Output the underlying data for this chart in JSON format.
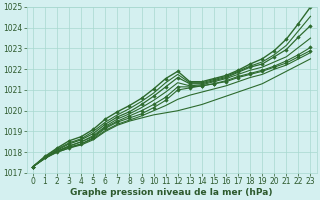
{
  "bg_color": "#d4f0f0",
  "grid_color": "#a8d8d0",
  "line_color": "#2d6a2d",
  "marker_color": "#2d6a2d",
  "xlabel": "Graphe pression niveau de la mer (hPa)",
  "xlim_min": -0.5,
  "xlim_max": 23.5,
  "ylim": [
    1017,
    1025
  ],
  "yticks": [
    1017,
    1018,
    1019,
    1020,
    1021,
    1022,
    1023,
    1024,
    1025
  ],
  "xticks": [
    0,
    1,
    2,
    3,
    4,
    5,
    6,
    7,
    8,
    9,
    10,
    11,
    12,
    13,
    14,
    15,
    16,
    17,
    18,
    19,
    20,
    21,
    22,
    23
  ],
  "series": [
    {
      "y": [
        1017.3,
        1017.7,
        1018.0,
        1018.2,
        1018.35,
        1018.6,
        1019.0,
        1019.3,
        1019.5,
        1019.65,
        1019.8,
        1019.9,
        1020.0,
        1020.15,
        1020.3,
        1020.5,
        1020.7,
        1020.9,
        1021.1,
        1021.3,
        1021.6,
        1021.9,
        1022.2,
        1022.5
      ],
      "marker": false,
      "lw": 0.8
    },
    {
      "y": [
        1017.3,
        1017.7,
        1018.05,
        1018.25,
        1018.4,
        1018.65,
        1019.05,
        1019.35,
        1019.55,
        1019.75,
        1020.0,
        1020.25,
        1020.55,
        1020.75,
        1020.9,
        1021.05,
        1021.2,
        1021.4,
        1021.6,
        1021.75,
        1022.0,
        1022.2,
        1022.5,
        1022.8
      ],
      "marker": false,
      "lw": 0.8
    },
    {
      "y": [
        1017.3,
        1017.75,
        1018.0,
        1018.2,
        1018.4,
        1018.7,
        1019.15,
        1019.45,
        1019.65,
        1019.85,
        1020.15,
        1020.5,
        1021.0,
        1021.1,
        1021.2,
        1021.3,
        1021.4,
        1021.6,
        1021.75,
        1021.9,
        1022.1,
        1022.3,
        1022.6,
        1022.9
      ],
      "marker": true,
      "lw": 0.8
    },
    {
      "y": [
        1017.3,
        1017.75,
        1018.05,
        1018.3,
        1018.5,
        1018.75,
        1019.2,
        1019.5,
        1019.75,
        1020.0,
        1020.3,
        1020.65,
        1021.15,
        1021.15,
        1021.2,
        1021.3,
        1021.45,
        1021.65,
        1021.8,
        1021.95,
        1022.15,
        1022.4,
        1022.7,
        1023.05
      ],
      "marker": true,
      "lw": 0.8
    },
    {
      "y": [
        1017.3,
        1017.75,
        1018.05,
        1018.3,
        1018.5,
        1018.8,
        1019.25,
        1019.6,
        1019.85,
        1020.15,
        1020.5,
        1020.9,
        1021.35,
        1021.2,
        1021.25,
        1021.4,
        1021.55,
        1021.75,
        1021.95,
        1022.1,
        1022.35,
        1022.6,
        1023.05,
        1023.5
      ],
      "marker": false,
      "lw": 0.8
    },
    {
      "y": [
        1017.3,
        1017.75,
        1018.1,
        1018.4,
        1018.6,
        1018.9,
        1019.35,
        1019.7,
        1019.95,
        1020.3,
        1020.7,
        1021.15,
        1021.6,
        1021.3,
        1021.3,
        1021.45,
        1021.6,
        1021.85,
        1022.1,
        1022.25,
        1022.6,
        1022.95,
        1023.55,
        1024.1
      ],
      "marker": true,
      "lw": 0.9
    },
    {
      "y": [
        1017.3,
        1017.8,
        1018.15,
        1018.45,
        1018.65,
        1019.0,
        1019.45,
        1019.8,
        1020.1,
        1020.45,
        1020.85,
        1021.35,
        1021.75,
        1021.35,
        1021.35,
        1021.5,
        1021.65,
        1021.9,
        1022.15,
        1022.35,
        1022.7,
        1023.15,
        1023.85,
        1024.55
      ],
      "marker": false,
      "lw": 0.8
    },
    {
      "y": [
        1017.3,
        1017.8,
        1018.2,
        1018.55,
        1018.75,
        1019.1,
        1019.6,
        1019.95,
        1020.25,
        1020.6,
        1021.05,
        1021.55,
        1021.9,
        1021.4,
        1021.4,
        1021.55,
        1021.7,
        1021.95,
        1022.25,
        1022.5,
        1022.9,
        1023.45,
        1024.2,
        1025.0
      ],
      "marker": true,
      "lw": 1.0
    }
  ],
  "font_color": "#2d5a2d",
  "tick_fontsize": 5.5,
  "label_fontsize": 6.5
}
